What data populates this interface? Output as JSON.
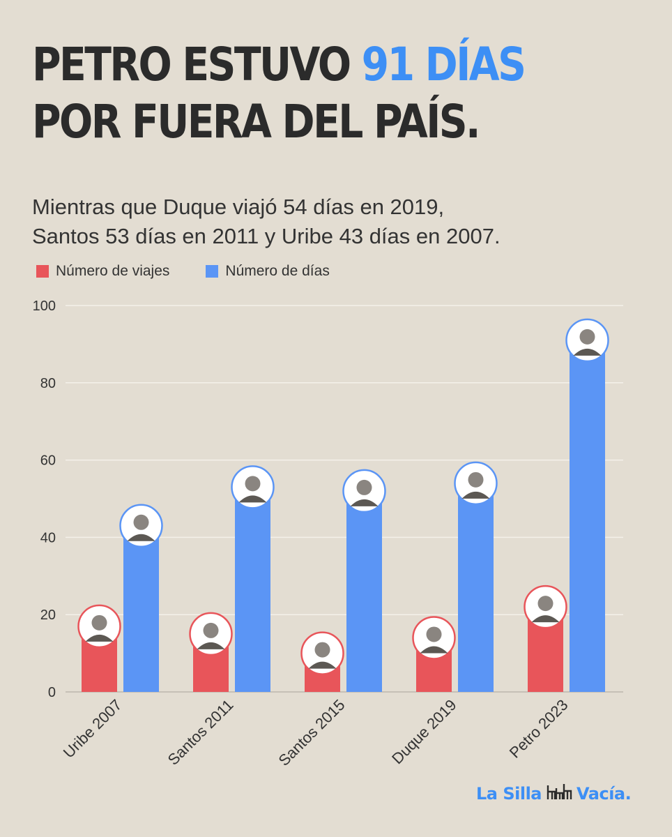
{
  "headline": {
    "before": "PETRO ESTUVO ",
    "accent": "91 DÍAS",
    "line2": "POR FUERA DEL PAÍS."
  },
  "subtitle": {
    "line1": "Mientras que Duque viajó 54 días en 2019,",
    "line2": "Santos 53 días en 2011 y Uribe 43 días en 2007."
  },
  "colors": {
    "trips": "#e8555a",
    "days": "#5b95f5",
    "accent": "#3d8ff5",
    "background": "#e3ddd2"
  },
  "brand": {
    "part1": "La Silla",
    "part2": "Vacía."
  },
  "chart_data": {
    "type": "bar",
    "categories": [
      "Uribe 2007",
      "Santos 2011",
      "Santos 2015",
      "Duque 2019",
      "Petro 2023"
    ],
    "series": [
      {
        "name": "Número de viajes",
        "values": [
          17,
          15,
          10,
          14,
          22
        ]
      },
      {
        "name": "Número de días",
        "values": [
          43,
          53,
          52,
          54,
          91
        ]
      }
    ],
    "ylim": [
      0,
      100
    ],
    "yticks": [
      0,
      20,
      40,
      60,
      80,
      100
    ],
    "grid": true,
    "legend_position": "top-left",
    "x_labels_rotated": true,
    "bar_tops": "portrait-avatar"
  }
}
